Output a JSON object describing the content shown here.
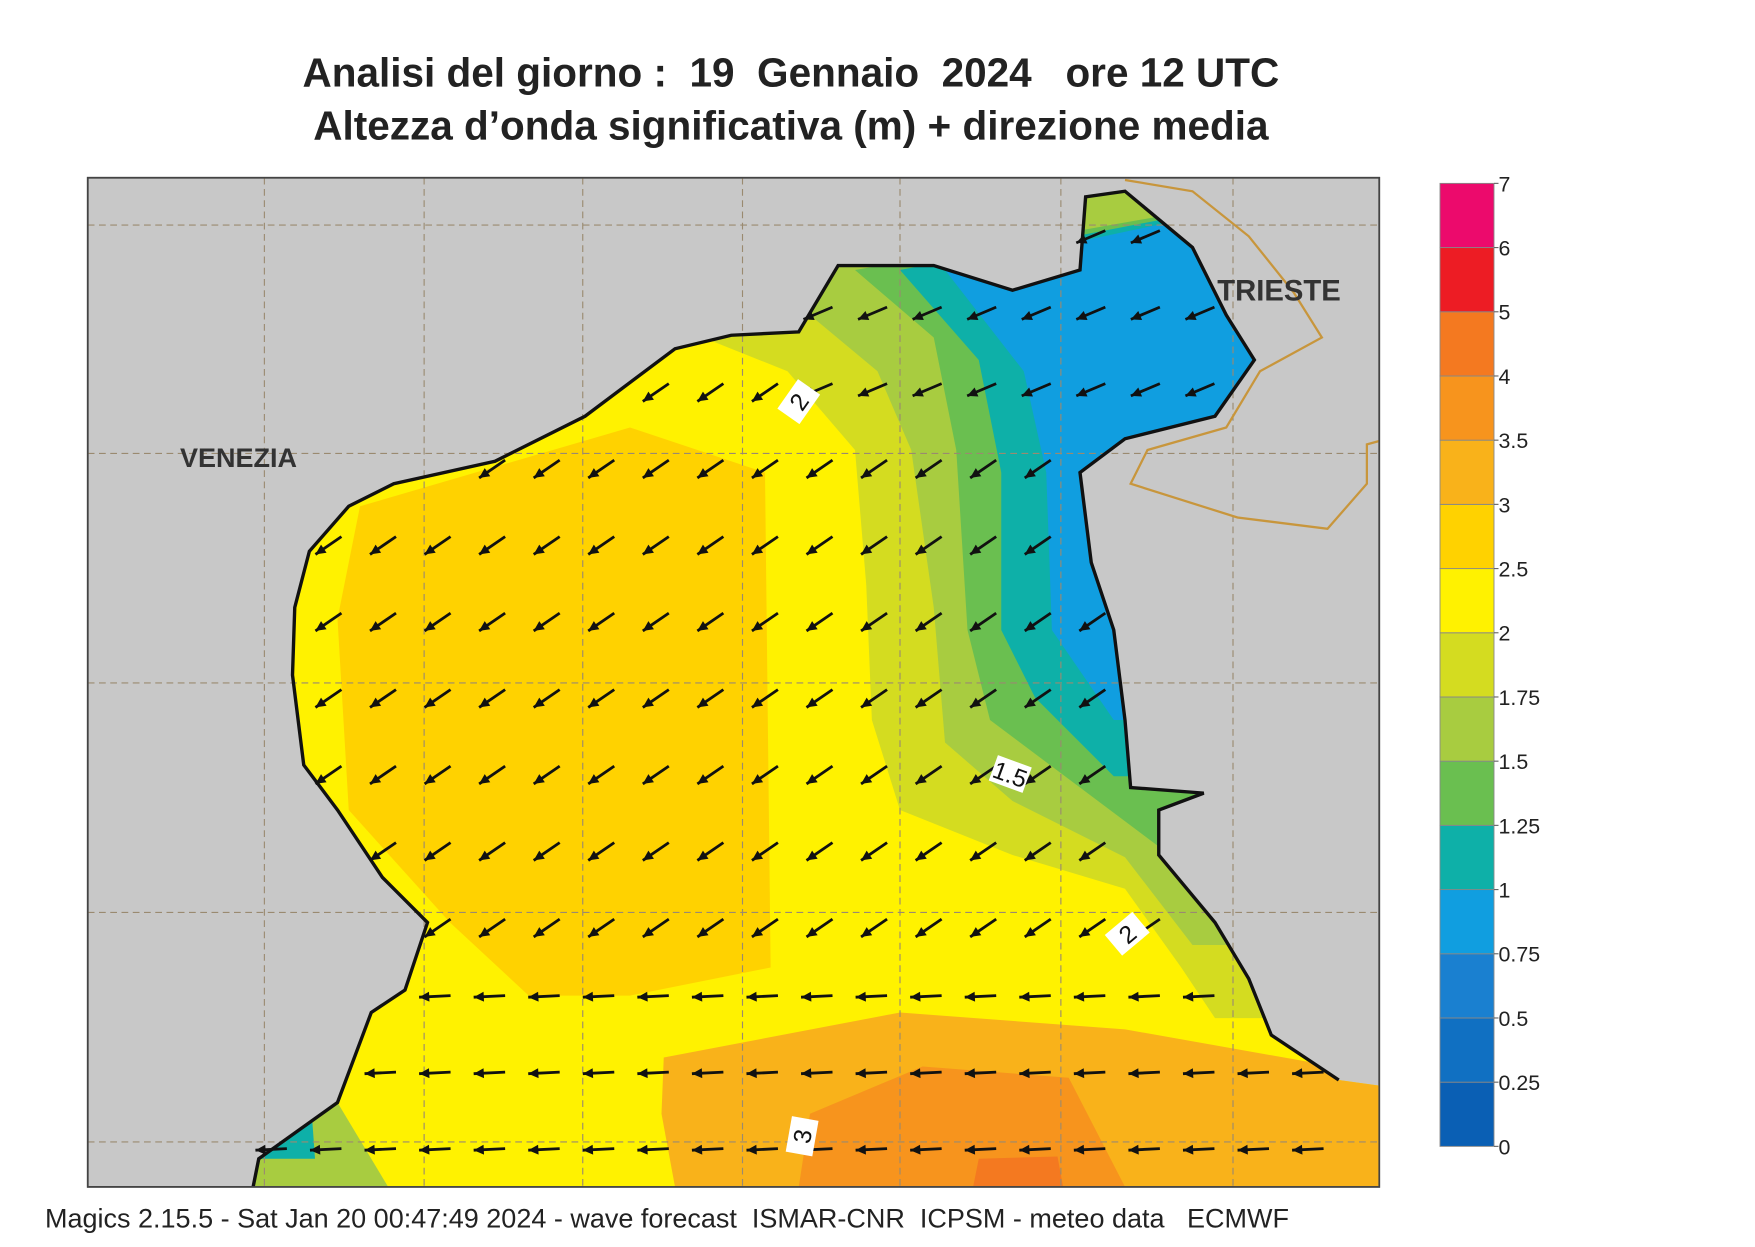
{
  "header": {
    "title": "Analisi del giorno :  19  Gennaio  2024   ore 12 UTC",
    "subtitle": "Altezza d’onda significativa (m) + direzione media"
  },
  "map": {
    "places": [
      "VENEZIA",
      "TRIESTE"
    ],
    "contour_labels": [
      "2",
      "1.5",
      "2",
      "3"
    ]
  },
  "legend": {
    "ticks": [
      0,
      0.25,
      0.5,
      0.75,
      1,
      1.25,
      1.5,
      1.75,
      2,
      2.5,
      3,
      3.5,
      4,
      5,
      6,
      7
    ],
    "colors": [
      "#0a5fb4",
      "#1070c2",
      "#1a80d0",
      "#109ee0",
      "#0eb0a8",
      "#6abf50",
      "#a8cc40",
      "#d4dc20",
      "#fff200",
      "#ffd200",
      "#f9b21a",
      "#f7941d",
      "#f47920",
      "#ed1c24",
      "#ec0a6c"
    ]
  },
  "footer": "Magics 2.15.5 - Sat Jan 20 00:47:49 2024 - wave forecast  ISMAR-CNR  ICPSM - meteo data   ECMWF"
}
